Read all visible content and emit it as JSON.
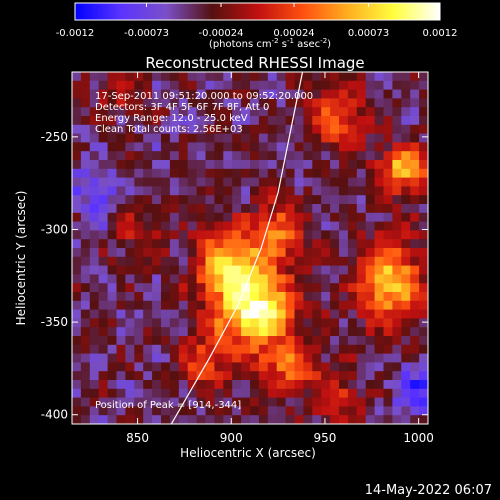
{
  "chart_data": {
    "type": "heatmap",
    "title": "Reconstructed RHESSI Image",
    "colorbar": {
      "ticks": [
        "-0.0012",
        "-0.00073",
        "-0.00024",
        "0.00024",
        "0.00073",
        "0.0012"
      ],
      "unit_label": {
        "base": "(photons cm",
        "e1": "-2",
        "p2": " s",
        "e2": "-1",
        "p3": " asec",
        "e3": "-2",
        "end": ")"
      },
      "range": [
        -0.0012,
        0.0012
      ],
      "colormap": [
        "#0000ff",
        "#5a33ff",
        "#7a50c8",
        "#551010",
        "#c01010",
        "#ff5010",
        "#ffb020",
        "#ffff40",
        "#ffffff"
      ]
    },
    "annotation_lines": [
      "17-Sep-2011 09:51:20.000 to 09:52:20.000",
      "Detectors: 3F 4F 5F 6F 7F 8F, Att 0",
      "Energy Range: 12.0 - 25.0 keV",
      "Clean     Total counts: 2.56E+03"
    ],
    "peak_label": "Position of Peak = [914,-344]",
    "xlabel": "Heliocentric X (arcsec)",
    "ylabel": "Heliocentric Y (arcsec)",
    "xlim": [
      815,
      1005
    ],
    "ylim": [
      -405,
      -215
    ],
    "xticks": [
      850,
      900,
      950,
      1000
    ],
    "xtick_labels": [
      "850",
      "900",
      "950",
      "1000"
    ],
    "yticks": [
      -400,
      -350,
      -300,
      -250
    ],
    "ytick_labels": [
      "-400",
      "-350",
      "-300",
      "-250"
    ],
    "limb_curve": [
      [
        868,
        -405
      ],
      [
        888,
        -370
      ],
      [
        904,
        -340
      ],
      [
        916,
        -310
      ],
      [
        925,
        -280
      ],
      [
        932,
        -245
      ],
      [
        938,
        -215
      ]
    ],
    "sources": [
      {
        "x": 912,
        "y": -343,
        "amp": 1.0,
        "sx": 15,
        "sy": 14
      },
      {
        "x": 898,
        "y": -318,
        "amp": 0.75,
        "sx": 12,
        "sy": 12
      },
      {
        "x": 925,
        "y": -302,
        "amp": 0.55,
        "sx": 10,
        "sy": 12
      },
      {
        "x": 985,
        "y": -328,
        "amp": 0.75,
        "sx": 12,
        "sy": 16
      },
      {
        "x": 992,
        "y": -268,
        "amp": 0.7,
        "sx": 10,
        "sy": 9
      },
      {
        "x": 930,
        "y": -375,
        "amp": 0.45,
        "sx": 14,
        "sy": 10
      },
      {
        "x": 885,
        "y": -372,
        "amp": 0.4,
        "sx": 10,
        "sy": 10
      },
      {
        "x": 957,
        "y": -240,
        "amp": 0.5,
        "sx": 10,
        "sy": 12
      },
      {
        "x": 958,
        "y": -392,
        "amp": 0.35,
        "sx": 9,
        "sy": 8
      },
      {
        "x": 840,
        "y": -225,
        "amp": 0.25,
        "sx": 10,
        "sy": 8
      },
      {
        "x": 850,
        "y": -300,
        "amp": 0.25,
        "sx": 10,
        "sy": 10
      },
      {
        "x": 1000,
        "y": -385,
        "amp": -0.35,
        "sx": 10,
        "sy": 10
      },
      {
        "x": 828,
        "y": -280,
        "amp": -0.25,
        "sx": 10,
        "sy": 12
      }
    ]
  },
  "footer": {
    "date": "14-May-2022 06:07"
  }
}
